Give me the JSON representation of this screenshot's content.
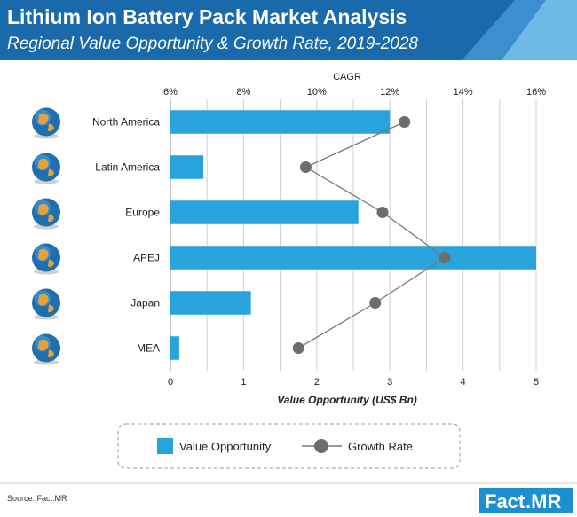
{
  "header": {
    "title": "Lithium Ion Battery Pack Market Analysis",
    "subtitle": "Regional Value Opportunity & Growth Rate, 2019-2028"
  },
  "colors": {
    "header_bg": "#1a6aab",
    "bar": "#29a3dc",
    "line": "#777777",
    "marker": "#6d6d6d",
    "brand": "#1b8fcf"
  },
  "chart_data": {
    "type": "bar",
    "orientation": "horizontal",
    "categories": [
      "North America",
      "Latin America",
      "Europe",
      "APEJ",
      "Japan",
      "MEA"
    ],
    "series": [
      {
        "name": "Value Opportunity",
        "type": "bar",
        "axis": "bottom",
        "values": [
          3.0,
          0.45,
          2.57,
          5.0,
          1.1,
          0.12
        ]
      },
      {
        "name": "Growth Rate",
        "type": "line",
        "axis": "top",
        "values": [
          12.4,
          9.7,
          11.8,
          13.5,
          11.6,
          9.5
        ]
      }
    ],
    "xlabel": "Value Opportunity (US$ Bn)",
    "x_ticks": [
      "0",
      "1",
      "2",
      "3",
      "4",
      "5"
    ],
    "xlim": [
      0,
      5
    ],
    "x2label": "CAGR",
    "x2_ticks": [
      "6%",
      "8%",
      "10%",
      "12%",
      "14%",
      "16%"
    ],
    "x2lim": [
      6,
      16
    ],
    "grid": "vertical",
    "legend": "bottom"
  },
  "legend": {
    "bar_label": "Value Opportunity",
    "line_label": "Growth Rate"
  },
  "source": "Source: Fact.MR",
  "brand": {
    "part1": "Fact",
    "part2": ".MR"
  }
}
